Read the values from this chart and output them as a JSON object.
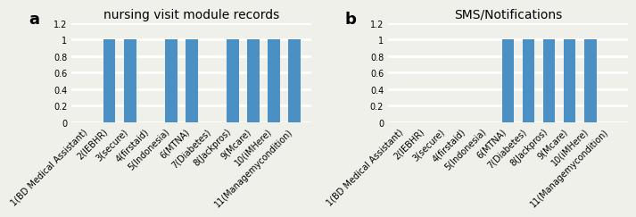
{
  "chart_a": {
    "title": "nursing visit module records",
    "categories": [
      "1(BD Medical Assistant)",
      "2(IEBHR)",
      "3(secure)",
      "4(firstaid)",
      "5(Indonesia)",
      "6(MTNA)",
      "7(Diabetes)",
      "8(Jackpros)",
      "9(Mcare)",
      "10(iMHere)",
      "11(Managemycondition)"
    ],
    "values": [
      0,
      1,
      1,
      0,
      1,
      1,
      0,
      1,
      1,
      1,
      1
    ],
    "bar_color": "#4a90c4",
    "ylim": [
      0,
      1.2
    ],
    "yticks": [
      0,
      0.2,
      0.4,
      0.6,
      0.8,
      1.0,
      1.2
    ],
    "ytick_labels": [
      "0",
      "0.2",
      "0.4",
      "0.6",
      "0.8",
      "1",
      "1.2"
    ],
    "label": "a"
  },
  "chart_b": {
    "title": "SMS/Notifications",
    "categories": [
      "1(BD Medical Assistant)",
      "2(IEBHR)",
      "3(secure)",
      "4(firstaid)",
      "5(Indonesia)",
      "6(MTNA)",
      "7(Diabetes)",
      "8(Jackpros)",
      "9(Mcare)",
      "10(iMHere)",
      "11(Managemycondition)"
    ],
    "values": [
      0,
      0,
      0,
      0,
      0,
      1,
      1,
      1,
      1,
      1,
      0
    ],
    "bar_color": "#4a90c4",
    "ylim": [
      0,
      1.2
    ],
    "yticks": [
      0,
      0.2,
      0.4,
      0.6,
      0.8,
      1.0,
      1.2
    ],
    "ytick_labels": [
      "0",
      "0.2",
      "0.4",
      "0.6",
      "0.8",
      "1",
      "1.2"
    ],
    "label": "b"
  },
  "background_color": "#f0f0eb",
  "grid_color": "#ffffff",
  "tick_fontsize": 7,
  "title_fontsize": 10,
  "label_fontsize": 13
}
